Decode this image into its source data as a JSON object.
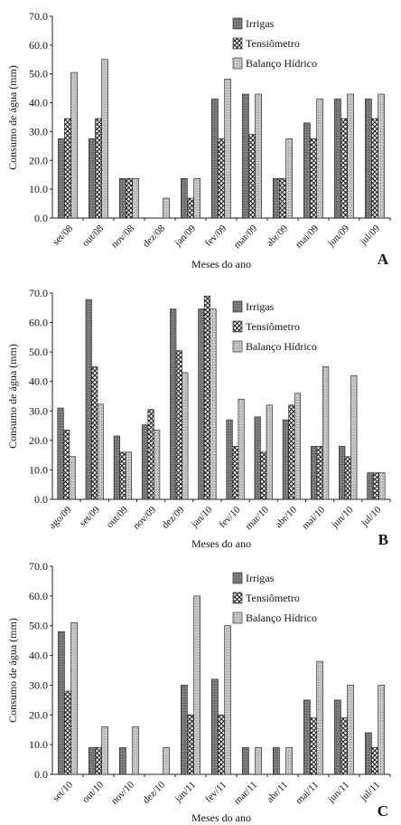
{
  "chart_data": [
    {
      "type": "bar",
      "panel_letter": "A",
      "xlabel": "Meses do ano",
      "ylabel": "Consumo de água (mm)",
      "ylim": [
        0,
        70
      ],
      "yticks": [
        "0.0",
        "10.0",
        "20.0",
        "30.0",
        "40.0",
        "50.0",
        "60.0",
        "70.0"
      ],
      "legend_position": "top-right",
      "categories": [
        "set/08",
        "out/08",
        "nov/08",
        "dez/08",
        "jan/09",
        "fev/09",
        "mar/09",
        "abr/09",
        "mai/09",
        "jun/09",
        "jul/09"
      ],
      "series": [
        {
          "name": "Irrigas",
          "values": [
            27.5,
            27.5,
            13.7,
            0,
            13.7,
            41.3,
            43.0,
            13.7,
            33.0,
            41.3,
            41.3
          ]
        },
        {
          "name": "Tensiômetro",
          "values": [
            34.5,
            34.5,
            13.7,
            0,
            6.9,
            27.5,
            29.0,
            13.7,
            27.5,
            34.5,
            34.5
          ]
        },
        {
          "name": "Balanço Hídrico",
          "values": [
            50.5,
            55.0,
            13.7,
            6.9,
            13.7,
            48.2,
            43.0,
            27.5,
            41.3,
            43.0,
            43.0
          ]
        }
      ]
    },
    {
      "type": "bar",
      "panel_letter": "B",
      "xlabel": "Meses do ano",
      "ylabel": "Consumo de água (mm)",
      "ylim": [
        0,
        70
      ],
      "yticks": [
        "0.0",
        "10.0",
        "20.0",
        "30.0",
        "40.0",
        "50.0",
        "60.0",
        "70.0"
      ],
      "legend_position": "top-right",
      "categories": [
        "ago/09",
        "set/09",
        "out/09",
        "nov/09",
        "dez/09",
        "jan/10",
        "fev/10",
        "mar/10",
        "abr/10",
        "mai/10",
        "jun/10",
        "jul/10"
      ],
      "series": [
        {
          "name": "Irrigas",
          "values": [
            31.0,
            67.8,
            21.5,
            25.3,
            64.6,
            64.6,
            27.0,
            28.0,
            27.0,
            18.0,
            18.0,
            9.0
          ]
        },
        {
          "name": "Tensiômetro",
          "values": [
            23.5,
            45.0,
            16.0,
            30.5,
            50.5,
            69.0,
            18.0,
            16.0,
            32.0,
            18.0,
            14.5,
            9.0
          ]
        },
        {
          "name": "Balanço Hídrico",
          "values": [
            14.5,
            32.3,
            16.0,
            23.5,
            43.0,
            64.6,
            34.0,
            32.0,
            36.0,
            45.0,
            42.0,
            9.0
          ]
        }
      ]
    },
    {
      "type": "bar",
      "panel_letter": "C",
      "xlabel": "Meses do ano",
      "ylabel": "Consumo de água (mm)",
      "ylim": [
        0,
        70
      ],
      "yticks": [
        "0.0",
        "10.0",
        "20.0",
        "30.0",
        "40.0",
        "50.0",
        "60.0",
        "70.0"
      ],
      "legend_position": "top-right",
      "categories": [
        "set/10",
        "out/10",
        "nov/10",
        "dez/10",
        "jan/11",
        "fev/11",
        "mar/11",
        "abr/11",
        "mai/11",
        "jun/11",
        "jul/11"
      ],
      "series": [
        {
          "name": "Irrigas",
          "values": [
            48.0,
            9.0,
            9.0,
            0,
            30.0,
            32.0,
            9.0,
            9.0,
            25.0,
            25.0,
            14.0
          ]
        },
        {
          "name": "Tensiômetro",
          "values": [
            28.0,
            9.0,
            0,
            0,
            20.0,
            20.0,
            0,
            0,
            19.0,
            19.0,
            9.0
          ]
        },
        {
          "name": "Balanço Hídrico",
          "values": [
            51.0,
            16.0,
            16.0,
            9.0,
            60.0,
            50.0,
            9.0,
            9.0,
            38.0,
            30.0,
            30.0
          ]
        }
      ]
    }
  ]
}
